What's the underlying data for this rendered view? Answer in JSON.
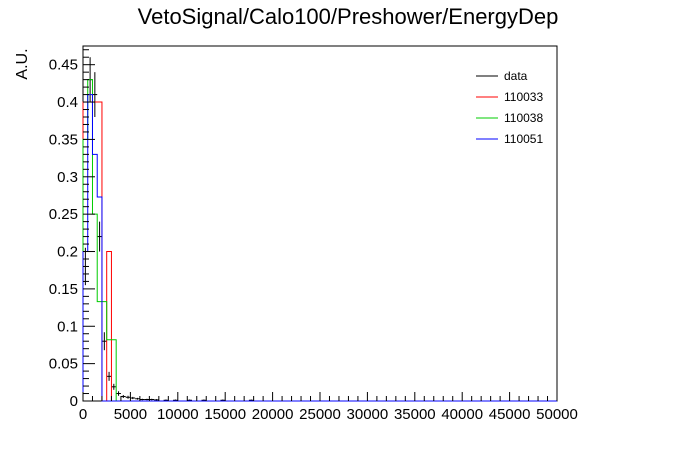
{
  "chart_data": {
    "type": "histogram",
    "title": "VetoSignal/Calo100/Preshower/EnergyDep",
    "xlabel": "",
    "ylabel": "A.U.",
    "xlim": [
      0,
      50000
    ],
    "ylim": [
      0,
      0.475
    ],
    "x_ticks": [
      0,
      5000,
      10000,
      15000,
      20000,
      25000,
      30000,
      35000,
      40000,
      45000,
      50000
    ],
    "x_tick_labels": [
      "0",
      "5000",
      "10000",
      "15000",
      "20000",
      "25000",
      "30000",
      "35000",
      "40000",
      "45000",
      "50000"
    ],
    "y_ticks": [
      0,
      0.05,
      0.1,
      0.15,
      0.2,
      0.25,
      0.3,
      0.35,
      0.4,
      0.45
    ],
    "y_tick_labels": [
      "0",
      "0.05",
      "0.1",
      "0.15",
      "0.2",
      "0.25",
      "0.3",
      "0.35",
      "0.4",
      "0.45"
    ],
    "grid": false,
    "legend_position": "top-right",
    "series": [
      {
        "name": "data",
        "style": "points-errorbars",
        "color": "#000000",
        "bin_width": 500,
        "x": [
          250,
          750,
          1250,
          1750,
          2250,
          2750,
          3250,
          3750,
          4250,
          4750,
          5250,
          5750,
          6250,
          6750,
          7250,
          7750,
          8750,
          9750,
          11250,
          12750,
          14750,
          17750
        ],
        "values": [
          0.18,
          0.43,
          0.41,
          0.22,
          0.08,
          0.033,
          0.019,
          0.01,
          0.006,
          0.005,
          0.004,
          0.003,
          0.002,
          0.002,
          0.002,
          0.0015,
          0.001,
          0.001,
          0.001,
          0.001,
          0.001,
          0.001
        ],
        "errors": [
          0.025,
          0.03,
          0.03,
          0.02,
          0.012,
          0.006,
          0.004,
          0.003,
          0.002,
          0.002,
          0.0015,
          0.0012,
          0.001,
          0.001,
          0.001,
          0.001,
          0.001,
          0.001,
          0.001,
          0.001,
          0.001,
          0.001
        ]
      },
      {
        "name": "110033",
        "style": "step",
        "color": "#ff0000",
        "bins": [
          [
            0,
            1000,
            0.4
          ],
          [
            1000,
            2000,
            0.4
          ],
          [
            2000,
            2500,
            0.0
          ],
          [
            2500,
            3000,
            0.2
          ],
          [
            3000,
            50000,
            0.0
          ]
        ]
      },
      {
        "name": "110038",
        "style": "step",
        "color": "#00cc00",
        "bins": [
          [
            0,
            500,
            0.35
          ],
          [
            500,
            1000,
            0.43
          ],
          [
            1000,
            1500,
            0.25
          ],
          [
            1500,
            2000,
            0.133
          ],
          [
            2000,
            2500,
            0.133
          ],
          [
            2500,
            3000,
            0.082
          ],
          [
            3000,
            3500,
            0.082
          ],
          [
            3500,
            50000,
            0.0
          ]
        ]
      },
      {
        "name": "110051",
        "style": "step",
        "color": "#0000ff",
        "bins": [
          [
            0,
            500,
            0.2
          ],
          [
            500,
            1000,
            0.41
          ],
          [
            1000,
            1500,
            0.33
          ],
          [
            1500,
            2000,
            0.273
          ],
          [
            2000,
            2500,
            0.0
          ],
          [
            2500,
            50000,
            0.0
          ]
        ]
      }
    ]
  }
}
